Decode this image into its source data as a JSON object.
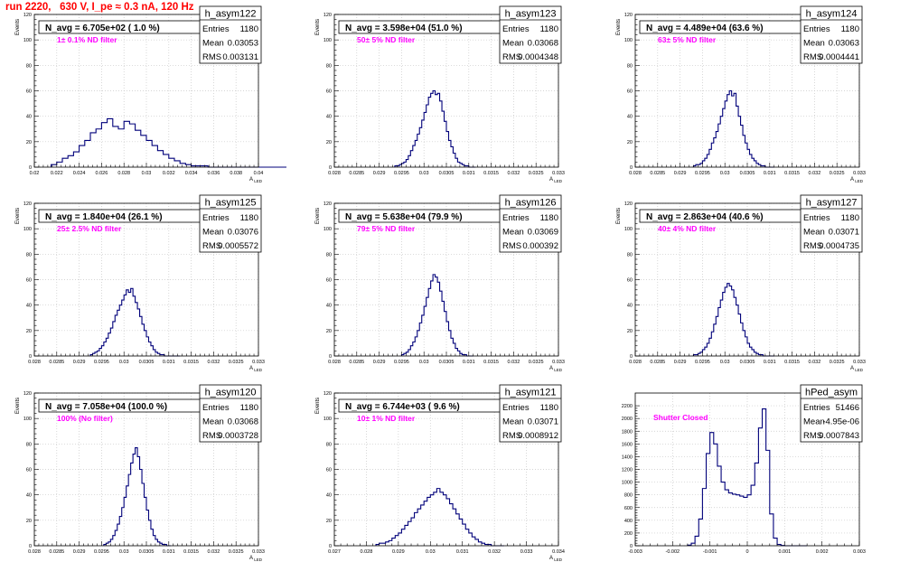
{
  "run_title": "run 2220,   630 V, I_pe ≈ 0.3 nA, 120 Hz",
  "chart_data": [
    {
      "type": "histogram",
      "name": "h_asym122",
      "ylabel": "Events",
      "xlabel": "A_LED",
      "stats": {
        "entries": "1180",
        "mean": "0.03053",
        "rms": "0.003131"
      },
      "navg": "N_avg = 6.705e+02 ( 1.0 %)",
      "filter": "1± 0.1% ND filter",
      "xlim": [
        0.02,
        0.04
      ],
      "ylim": [
        0,
        120
      ],
      "xticks": [
        "0.02",
        "0.022",
        "0.024",
        "0.026",
        "0.028",
        "0.03",
        "0.032",
        "0.034",
        "0.036",
        "0.038",
        "0.04"
      ],
      "yticks": [
        "0",
        "20",
        "40",
        "60",
        "80",
        "100",
        "120"
      ],
      "bins_start": 0.0215,
      "bin_width": 0.0005,
      "counts": [
        2,
        4,
        7,
        9,
        12,
        17,
        21,
        27,
        30,
        35,
        38,
        32,
        30,
        36,
        34,
        29,
        25,
        21,
        17,
        13,
        10,
        7,
        5,
        3,
        2,
        1,
        1,
        1,
        0,
        0,
        0,
        0,
        0,
        0,
        0,
        0,
        0,
        0,
        0,
        0,
        0,
        0
      ]
    },
    {
      "type": "histogram",
      "name": "h_asym123",
      "ylabel": "Events",
      "xlabel": "A_LED",
      "stats": {
        "entries": "1180",
        "mean": "0.03068",
        "rms": "0.0004348"
      },
      "navg": "N_avg = 3.598e+04 (51.0 %)",
      "filter": "50± 5% ND filter",
      "xlim": [
        0.028,
        0.033
      ],
      "ylim": [
        0,
        120
      ],
      "xticks": [
        "0.028",
        "0.0285",
        "0.029",
        "0.0295",
        "0.03",
        "0.0305",
        "0.031",
        "0.0315",
        "0.032",
        "0.0325",
        "0.033"
      ],
      "yticks": [
        "0",
        "20",
        "40",
        "60",
        "80",
        "100",
        "120"
      ],
      "bins_start": 0.02935,
      "bin_width": 5e-05,
      "counts": [
        1,
        1,
        2,
        3,
        4,
        6,
        9,
        13,
        17,
        21,
        26,
        31,
        37,
        43,
        49,
        55,
        58,
        60,
        57,
        58,
        52,
        44,
        36,
        28,
        21,
        16,
        11,
        7,
        4,
        3,
        2,
        1,
        1,
        0,
        0,
        0
      ]
    },
    {
      "type": "histogram",
      "name": "h_asym124",
      "ylabel": "Events",
      "xlabel": "A_LED",
      "stats": {
        "entries": "1180",
        "mean": "0.03063",
        "rms": "0.0004441"
      },
      "navg": "N_avg = 4.489e+04 (63.6 %)",
      "filter": "63± 5% ND filter",
      "xlim": [
        0.028,
        0.033
      ],
      "ylim": [
        0,
        120
      ],
      "xticks": [
        "0.028",
        "0.0285",
        "0.029",
        "0.0295",
        "0.03",
        "0.0305",
        "0.031",
        "0.0315",
        "0.032",
        "0.0325",
        "0.033"
      ],
      "yticks": [
        "0",
        "20",
        "40",
        "60",
        "80",
        "100",
        "120"
      ],
      "bins_start": 0.0293,
      "bin_width": 5e-05,
      "counts": [
        1,
        2,
        2,
        3,
        5,
        7,
        10,
        14,
        19,
        23,
        28,
        34,
        40,
        46,
        52,
        57,
        60,
        56,
        58,
        48,
        40,
        33,
        25,
        19,
        14,
        10,
        7,
        5,
        3,
        2,
        1,
        1,
        0,
        0,
        0,
        0
      ]
    },
    {
      "type": "histogram",
      "name": "h_asym125",
      "ylabel": "Events",
      "xlabel": "A_LED",
      "stats": {
        "entries": "1180",
        "mean": "0.03076",
        "rms": "0.0005572"
      },
      "navg": "N_avg = 1.840e+04 (26.1 %)",
      "filter": "25± 2.5% ND filter",
      "xlim": [
        0.028,
        0.033
      ],
      "ylim": [
        0,
        120
      ],
      "xticks": [
        "0.028",
        "0.0285",
        "0.029",
        "0.0295",
        "0.03",
        "0.0305",
        "0.031",
        "0.0315",
        "0.032",
        "0.0325",
        "0.033"
      ],
      "yticks": [
        "0",
        "20",
        "40",
        "60",
        "80",
        "100",
        "120"
      ],
      "bins_start": 0.02925,
      "bin_width": 5e-05,
      "counts": [
        1,
        2,
        3,
        4,
        6,
        8,
        11,
        14,
        18,
        22,
        27,
        32,
        36,
        40,
        44,
        48,
        52,
        50,
        53,
        47,
        42,
        37,
        31,
        25,
        20,
        15,
        11,
        8,
        5,
        3,
        2,
        1,
        1,
        0,
        0,
        0,
        0,
        0,
        0,
        0
      ]
    },
    {
      "type": "histogram",
      "name": "h_asym126",
      "ylabel": "Events",
      "xlabel": "A_LED",
      "stats": {
        "entries": "1180",
        "mean": "0.03069",
        "rms": "0.000392"
      },
      "navg": "N_avg = 5.638e+04 (79.9 %)",
      "filter": "79± 5% ND filter",
      "xlim": [
        0.028,
        0.033
      ],
      "ylim": [
        0,
        120
      ],
      "xticks": [
        "0.028",
        "0.0285",
        "0.029",
        "0.0295",
        "0.03",
        "0.0305",
        "0.031",
        "0.0315",
        "0.032",
        "0.0325",
        "0.033"
      ],
      "yticks": [
        "0",
        "20",
        "40",
        "60",
        "80",
        "100",
        "120"
      ],
      "bins_start": 0.0295,
      "bin_width": 5e-05,
      "counts": [
        1,
        2,
        3,
        5,
        8,
        11,
        15,
        20,
        26,
        32,
        39,
        46,
        53,
        59,
        64,
        62,
        58,
        51,
        43,
        35,
        27,
        20,
        14,
        10,
        6,
        4,
        2,
        1,
        1,
        0,
        0,
        0
      ]
    },
    {
      "type": "histogram",
      "name": "h_asym127",
      "ylabel": "Events",
      "xlabel": "A_LED",
      "stats": {
        "entries": "1180",
        "mean": "0.03071",
        "rms": "0.0004735"
      },
      "navg": "N_avg = 2.863e+04 (40.6 %)",
      "filter": "40± 4% ND filter",
      "xlim": [
        0.028,
        0.033
      ],
      "ylim": [
        0,
        120
      ],
      "xticks": [
        "0.028",
        "0.0285",
        "0.029",
        "0.0295",
        "0.03",
        "0.0305",
        "0.031",
        "0.0315",
        "0.032",
        "0.0325",
        "0.033"
      ],
      "yticks": [
        "0",
        "20",
        "40",
        "60",
        "80",
        "100",
        "120"
      ],
      "bins_start": 0.0293,
      "bin_width": 5e-05,
      "counts": [
        1,
        1,
        2,
        3,
        5,
        7,
        10,
        14,
        19,
        25,
        31,
        38,
        44,
        50,
        54,
        57,
        55,
        52,
        46,
        40,
        33,
        26,
        20,
        15,
        10,
        7,
        5,
        3,
        2,
        1,
        1,
        0,
        0,
        0,
        0,
        0
      ]
    },
    {
      "type": "histogram",
      "name": "h_asym120",
      "ylabel": "Events",
      "xlabel": "A_LED",
      "stats": {
        "entries": "1180",
        "mean": "0.03068",
        "rms": "0.0003728"
      },
      "navg": "N_avg = 7.058e+04 (100.0 %)",
      "filter": "100% (No filter)",
      "xlim": [
        0.028,
        0.033
      ],
      "ylim": [
        0,
        120
      ],
      "xticks": [
        "0.028",
        "0.0285",
        "0.029",
        "0.0295",
        "0.03",
        "0.0305",
        "0.031",
        "0.0315",
        "0.032",
        "0.0325",
        "0.033"
      ],
      "yticks": [
        "0",
        "20",
        "40",
        "60",
        "80",
        "100",
        "120"
      ],
      "bins_start": 0.02955,
      "bin_width": 5e-05,
      "counts": [
        1,
        2,
        3,
        5,
        8,
        12,
        17,
        23,
        30,
        38,
        47,
        56,
        65,
        72,
        77,
        70,
        60,
        49,
        38,
        28,
        20,
        13,
        8,
        5,
        3,
        2,
        1,
        1,
        0,
        0
      ]
    },
    {
      "type": "histogram",
      "name": "h_asym121",
      "ylabel": "Events",
      "xlabel": "A_LED",
      "stats": {
        "entries": "1180",
        "mean": "0.03071",
        "rms": "0.0008912"
      },
      "navg": "N_avg = 6.744e+03 ( 9.6 %)",
      "filter": "10± 1% ND filter",
      "xlim": [
        0.027,
        0.034
      ],
      "ylim": [
        0,
        120
      ],
      "xticks": [
        "0.027",
        "0.028",
        "0.029",
        "0.03",
        "0.031",
        "0.032",
        "0.033",
        "0.034"
      ],
      "yticks": [
        "0",
        "20",
        "40",
        "60",
        "80",
        "100",
        "120"
      ],
      "bins_start": 0.0283,
      "bin_width": 0.0001,
      "counts": [
        1,
        2,
        2,
        3,
        4,
        6,
        8,
        10,
        13,
        16,
        19,
        22,
        26,
        29,
        32,
        35,
        38,
        40,
        42,
        45,
        42,
        40,
        37,
        33,
        29,
        25,
        21,
        17,
        13,
        10,
        7,
        5,
        3,
        2,
        1,
        1,
        0,
        0,
        0,
        0
      ]
    },
    {
      "type": "histogram",
      "name": "hPed_asym",
      "ylabel": "",
      "xlabel": "",
      "stats": {
        "entries": "51466",
        "mean": "-4.95e-06",
        "rms": "0.0007843"
      },
      "navg": "",
      "filter": "Shutter Closed",
      "xlim": [
        -0.003,
        0.003
      ],
      "ylim": [
        0,
        2400
      ],
      "xticks": [
        "-0.003",
        "-0.002",
        "-0.001",
        "0",
        "0.001",
        "0.002",
        "0.003"
      ],
      "yticks": [
        "0",
        "200",
        "400",
        "600",
        "800",
        "1000",
        "1200",
        "1400",
        "1600",
        "1800",
        "2000",
        "2200"
      ],
      "bins_start": -0.0016,
      "bin_width": 0.0001,
      "counts": [
        10,
        40,
        150,
        420,
        900,
        1450,
        1780,
        1600,
        1250,
        1000,
        880,
        830,
        810,
        800,
        780,
        760,
        800,
        950,
        1300,
        1850,
        2150,
        1500,
        500,
        120,
        20,
        5,
        0,
        0,
        0,
        0,
        0,
        0
      ]
    }
  ]
}
